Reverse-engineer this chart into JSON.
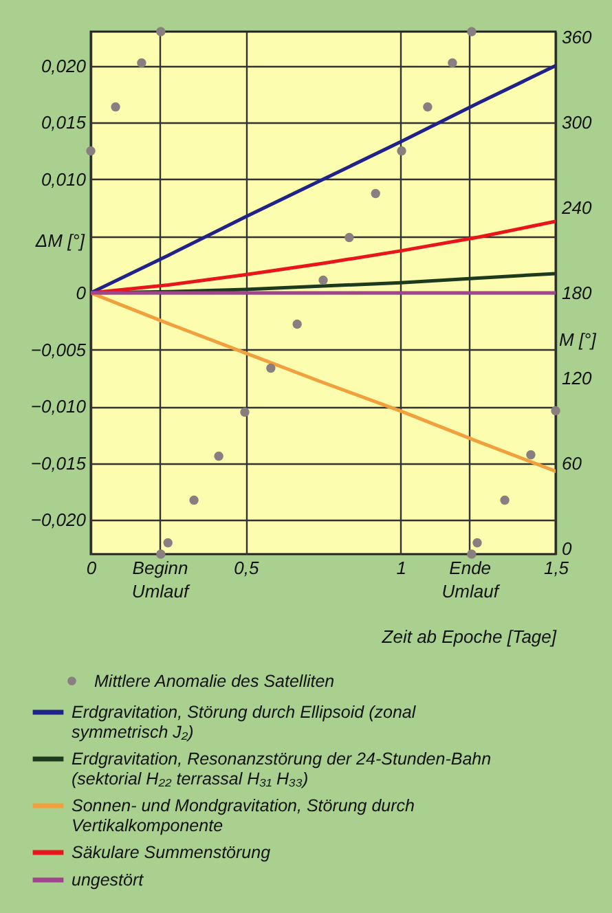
{
  "chart_data": {
    "type": "line",
    "xlabel": "Zeit ab Epoche [Tage]",
    "ylabel": "ΔM [°]",
    "y2label": "M [°]",
    "x": [
      0,
      0.25,
      0.5,
      0.75,
      1,
      1.25,
      1.5
    ],
    "xlim": [
      0,
      1.5
    ],
    "xticks": [
      0,
      {
        "value": 0.222,
        "label": "Beginn Umlauf"
      },
      {
        "value": 0.5,
        "label": "0,5"
      },
      1,
      {
        "value": 1.222,
        "label": "Ende Umlauf"
      },
      {
        "value": 1.5,
        "label": "1,5"
      }
    ],
    "ylim": [
      -0.023,
      0.023
    ],
    "yticks": [
      {
        "value": -0.02,
        "label": "−0,020"
      },
      {
        "value": -0.015,
        "label": "−0,015"
      },
      {
        "value": -0.01,
        "label": "−0,010"
      },
      {
        "value": -0.005,
        "label": "−0,005"
      },
      0,
      {
        "value": 0.005,
        "label": null
      },
      {
        "value": 0.01,
        "label": "0,010"
      },
      {
        "value": 0.015,
        "label": "0,015"
      },
      {
        "value": 0.02,
        "label": "0,020"
      }
    ],
    "y2lim": [
      -4,
      364
    ],
    "y2ticks": [
      0,
      60,
      120,
      180,
      240,
      300,
      360
    ],
    "grid": true,
    "legend": "bottom",
    "line_style": "solid",
    "series": [
      {
        "name": "Mittlere Anomalie des Satelliten",
        "type": "scatter",
        "axis": "y2",
        "marker": "circle",
        "color": "#8a7f80",
        "x": [
          0,
          0.08,
          0.164,
          0.226,
          0.226,
          0.249,
          0.333,
          0.413,
          0.497,
          0.581,
          0.666,
          0.75,
          0.834,
          0.919,
          1.003,
          1.087,
          1.167,
          1.229,
          1.229,
          1.247,
          1.336,
          1.42,
          1.5
        ],
        "values": [
          280,
          311,
          342,
          364,
          -4,
          4,
          34,
          65,
          96,
          127,
          158,
          189,
          219,
          250,
          280,
          311,
          342,
          364,
          -4,
          4,
          34,
          66,
          97
        ]
      },
      {
        "name": "Erdgravitation, Störung durch Ellipsoid (zonal symmetrisch J₂)",
        "color": "#1f2288",
        "values": [
          0,
          0.0033,
          0.0067,
          0.01,
          0.0133,
          0.0167,
          0.02
        ]
      },
      {
        "name": "Erdgravitation, Resonanzstörung der 24-Stunden-Bahn (sektorial H₂₂ terrassal H₃₁ H₃₃)",
        "color": "#1e3a1e",
        "values": [
          0,
          0.0001,
          0.0003,
          0.0006,
          0.0009,
          0.0013,
          0.0017
        ]
      },
      {
        "name": "Sonnen- und Mondgravitation, Störung durch Vertikalkomponente",
        "color": "#f0a03c",
        "values": [
          0,
          -0.0027,
          -0.0053,
          -0.0079,
          -0.0104,
          -0.0131,
          -0.0157
        ]
      },
      {
        "name": "Säkulare Summenstörung",
        "color": "#e8151b",
        "values": [
          0,
          0.0007,
          0.0016,
          0.0026,
          0.0037,
          0.0049,
          0.0063
        ]
      },
      {
        "name": "ungestört",
        "color": "#a0448c",
        "values": [
          0,
          0,
          0,
          0,
          0,
          0,
          0
        ]
      }
    ]
  }
}
